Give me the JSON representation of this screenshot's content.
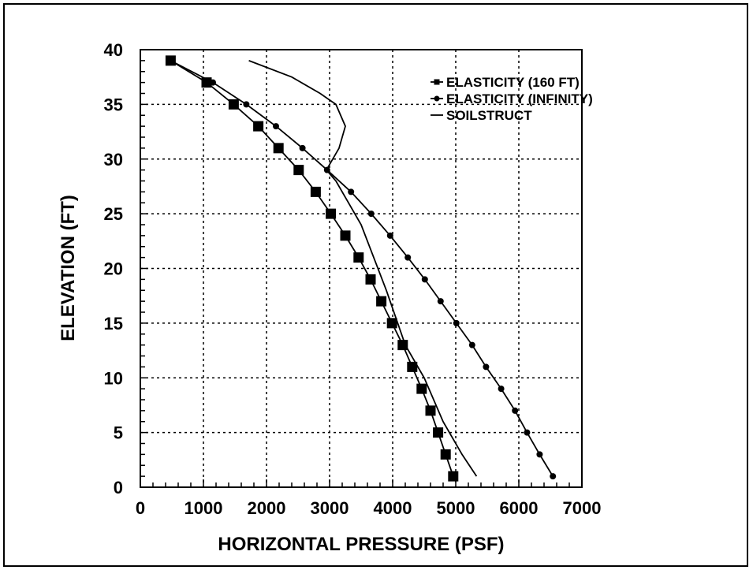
{
  "chart_data": {
    "type": "line",
    "xlabel": "HORIZONTAL PRESSURE (PSF)",
    "ylabel": "ELEVATION (FT)",
    "xlim": [
      0,
      7000
    ],
    "ylim": [
      0,
      40
    ],
    "xticks": [
      "0",
      "1000",
      "2000",
      "3000",
      "4000",
      "5000",
      "6000",
      "7000"
    ],
    "yticks": [
      "0",
      "5",
      "10",
      "15",
      "20",
      "25",
      "30",
      "35",
      "40"
    ],
    "grid": true,
    "legend_position": "top-right",
    "series": [
      {
        "name": "ELASTICITY (160 FT)",
        "marker": "square",
        "points": [
          [
            480,
            39
          ],
          [
            1050,
            37
          ],
          [
            1480,
            35
          ],
          [
            1870,
            33
          ],
          [
            2190,
            31
          ],
          [
            2510,
            29
          ],
          [
            2780,
            27
          ],
          [
            3020,
            25
          ],
          [
            3250,
            23
          ],
          [
            3460,
            21
          ],
          [
            3650,
            19
          ],
          [
            3820,
            17
          ],
          [
            3990,
            15
          ],
          [
            4160,
            13
          ],
          [
            4310,
            11
          ],
          [
            4460,
            9
          ],
          [
            4600,
            7
          ],
          [
            4720,
            5
          ],
          [
            4840,
            3
          ],
          [
            4960,
            1
          ]
        ]
      },
      {
        "name": "ELASTICITY (INFINITY)",
        "marker": "circle",
        "points": [
          [
            480,
            39
          ],
          [
            1150,
            37
          ],
          [
            1680,
            35
          ],
          [
            2150,
            33
          ],
          [
            2570,
            31
          ],
          [
            2960,
            29
          ],
          [
            3340,
            27
          ],
          [
            3660,
            25
          ],
          [
            3960,
            23
          ],
          [
            4240,
            21
          ],
          [
            4510,
            19
          ],
          [
            4760,
            17
          ],
          [
            5010,
            15
          ],
          [
            5260,
            13
          ],
          [
            5480,
            11
          ],
          [
            5720,
            9
          ],
          [
            5940,
            7
          ],
          [
            6130,
            5
          ],
          [
            6330,
            3
          ],
          [
            6540,
            1
          ]
        ]
      },
      {
        "name": "SOILSTRUCT",
        "marker": "none",
        "points": [
          [
            1720,
            39
          ],
          [
            2400,
            37.5
          ],
          [
            2850,
            36
          ],
          [
            3100,
            35
          ],
          [
            3250,
            33
          ],
          [
            3150,
            31
          ],
          [
            2950,
            29
          ],
          [
            3100,
            28
          ],
          [
            3500,
            24
          ],
          [
            3900,
            18
          ],
          [
            4200,
            13
          ],
          [
            4500,
            10
          ],
          [
            4800,
            6
          ],
          [
            5100,
            3
          ],
          [
            5330,
            1
          ]
        ]
      }
    ]
  }
}
